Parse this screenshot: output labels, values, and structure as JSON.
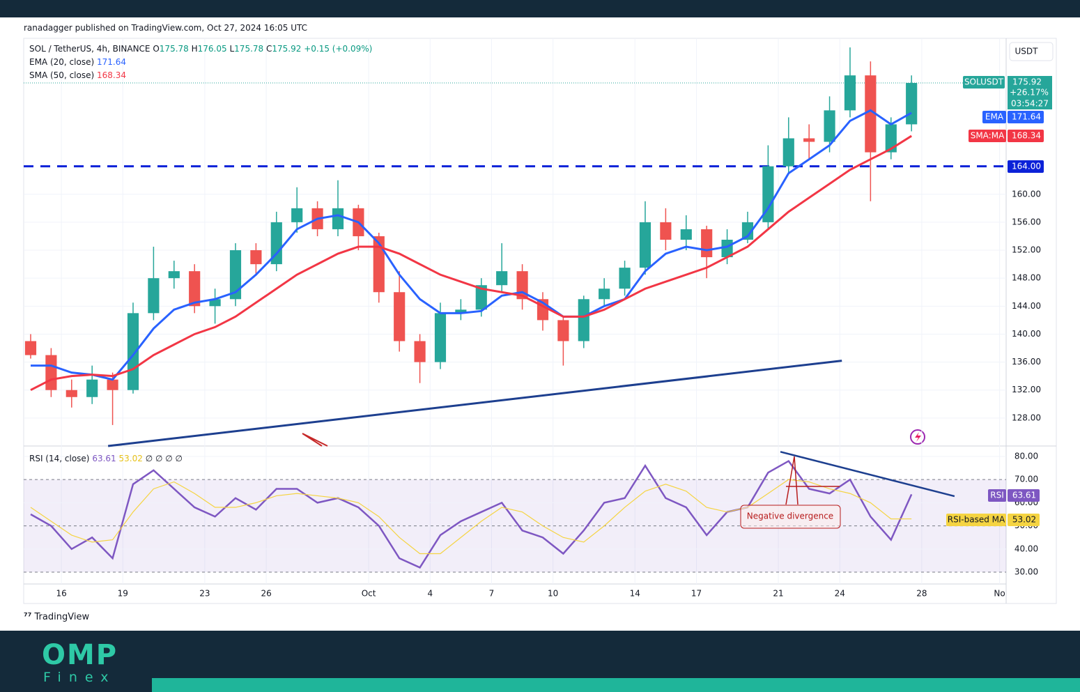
{
  "header": {
    "published": "ranadagger published on TradingView.com, Oct 27, 2024 16:05 UTC"
  },
  "chart_data": {
    "type": "candlestick",
    "symbol": "SOL / TetherUS, 4h, BINANCE",
    "ohlc": [
      {
        "label": "O",
        "value": 175.78
      },
      {
        "label": "H",
        "value": 176.05
      },
      {
        "label": "L",
        "value": 175.78
      }
    ],
    "close_label": "C",
    "change": "+0.15 (+0.09%)",
    "x": [
      14.5,
      15.5,
      16.5,
      17.5,
      18.5,
      19.5,
      20.5,
      21.5,
      22.5,
      23.5,
      24.5,
      25.5,
      26.5,
      27.5,
      28.5,
      29.5,
      30.5,
      31.5,
      32.5,
      33.5,
      34.5,
      35.5,
      36.5,
      37.5,
      38.5,
      39.5,
      40.5,
      41.5,
      42.5,
      43.5,
      44.5,
      45.5,
      46.5,
      47.5,
      48.5,
      49.5,
      50.5,
      51.5,
      52.5,
      53.5,
      54.5,
      55.5,
      56.5,
      57.5
    ],
    "xlim": [
      14.16,
      62.12
    ],
    "xticks": [
      16,
      19,
      23,
      26,
      {
        "value": 31,
        "label": "Oct"
      },
      {
        "value": 34,
        "label": "4"
      },
      {
        "value": 37,
        "label": "7"
      },
      {
        "value": 40,
        "label": "10"
      },
      {
        "value": 44,
        "label": "14"
      },
      {
        "value": 47,
        "label": "17"
      },
      {
        "value": 51,
        "label": "21"
      },
      {
        "value": 54,
        "label": "24"
      },
      {
        "value": 58,
        "label": "28"
      },
      {
        "value": 61.8,
        "label": "No"
      }
    ],
    "open": [
      139,
      137,
      132,
      131,
      133.5,
      132,
      143,
      148,
      149,
      144,
      145,
      152,
      150,
      156,
      158,
      155,
      158,
      154,
      146,
      139,
      136,
      143,
      143.5,
      147,
      149,
      145,
      142,
      139,
      145,
      146.5,
      149.5,
      156,
      153.5,
      155,
      151,
      153.5,
      156,
      164,
      168,
      167.5,
      172,
      177,
      166,
      170
    ],
    "high": [
      140,
      138,
      133.5,
      135.5,
      134.5,
      144.5,
      152.5,
      150.5,
      150,
      146.5,
      153,
      153,
      157.5,
      161,
      159,
      162,
      158.5,
      154.5,
      149,
      140,
      144.5,
      145,
      148,
      153,
      150,
      146,
      142.5,
      145.5,
      148,
      150.5,
      159,
      158,
      157,
      155.5,
      155,
      157.5,
      167,
      171,
      170,
      174,
      181,
      179,
      171,
      177
    ],
    "low": [
      136.5,
      131,
      129.5,
      130,
      127,
      131.5,
      142,
      146.5,
      143,
      141.5,
      144,
      148.5,
      149,
      154.5,
      154,
      154,
      152,
      144.5,
      137.5,
      133,
      135,
      142,
      142.5,
      146,
      143.5,
      140.5,
      135.5,
      138,
      144,
      145.5,
      148.5,
      152,
      152,
      148,
      150,
      153,
      155,
      163,
      165,
      166,
      171,
      159,
      165,
      169
    ],
    "close": [
      137,
      132,
      131,
      133.5,
      132,
      143,
      148,
      149,
      144,
      145,
      152,
      150,
      156,
      158,
      155,
      158,
      154,
      146,
      139,
      136,
      143,
      143.5,
      147,
      149,
      145,
      142,
      139,
      145,
      146.5,
      149.5,
      156,
      153.5,
      155,
      151,
      153.5,
      156,
      164,
      168,
      167.5,
      172,
      177,
      166,
      170,
      175.92
    ],
    "colors": {
      "up": "#26a69a",
      "down": "#ef5350"
    },
    "series": [
      {
        "name": "EMA (20, close)",
        "color": "#2962ff",
        "values": [
          135.5,
          135.5,
          134.5,
          134.2,
          133.5,
          137,
          140.8,
          143.5,
          144.5,
          145,
          146,
          148.5,
          151.5,
          155,
          156.5,
          157,
          156,
          153,
          148.5,
          145,
          143,
          143,
          143.3,
          145.5,
          146,
          144.5,
          142.5,
          142.5,
          144,
          145,
          149,
          151.5,
          152.5,
          152,
          152.5,
          154,
          158,
          163,
          165,
          167,
          170.5,
          172,
          170,
          171.64
        ]
      },
      {
        "name": "SMA (50, close)",
        "color": "#f23645",
        "values": [
          132,
          133.5,
          134,
          134.2,
          134,
          135,
          137,
          138.5,
          140,
          141,
          142.5,
          144.5,
          146.5,
          148.5,
          150,
          151.5,
          152.5,
          152.5,
          151.5,
          150,
          148.5,
          147.5,
          146.5,
          146,
          145.5,
          144,
          142.5,
          142.5,
          143.5,
          145,
          146.5,
          147.5,
          148.5,
          149.5,
          151,
          152.5,
          155,
          157.5,
          159.5,
          161.5,
          163.5,
          165,
          166.5,
          168.34
        ]
      }
    ],
    "ylim": [
      124,
      182.3
    ],
    "yticks": [
      {
        "value": 128,
        "label": "128.00"
      },
      {
        "value": 132,
        "label": "132.00"
      },
      {
        "value": 136,
        "label": "136.00"
      },
      {
        "value": 140,
        "label": "140.00"
      },
      {
        "value": 144,
        "label": "144.00"
      },
      {
        "value": 148,
        "label": "148.00"
      },
      {
        "value": 152,
        "label": "152.00"
      },
      {
        "value": 156,
        "label": "156.00"
      },
      {
        "value": 160,
        "label": "160.00"
      }
    ],
    "grid": true,
    "level": {
      "value": 164,
      "label": "164.00",
      "color": "#0c22d8"
    },
    "trendline": {
      "x": [
        18.28,
        54.1
      ],
      "y": [
        124.0,
        136.2
      ],
      "color": "#1d3f8f"
    },
    "currency": "USDT",
    "price_tag": {
      "symbol": "SOLUSDT",
      "change": "+26.17%",
      "countdown": "03:54:27"
    },
    "ema_tag": "EMA",
    "sma_tag": "SMA:MA",
    "rsi": {
      "title": "RSI (14, close)",
      "empty": "∅ ∅ ∅ ∅",
      "series": [
        {
          "name": "RSI",
          "color": "#7e57c2",
          "values": [
            55,
            50,
            40,
            45,
            36,
            68,
            74,
            66,
            58,
            54,
            62,
            57,
            66,
            66,
            60,
            62,
            58,
            50,
            36,
            32,
            46,
            52,
            56,
            60,
            48,
            45,
            38,
            48,
            60,
            62,
            76,
            62,
            58,
            46,
            56,
            58,
            73,
            78,
            66,
            64,
            70,
            54,
            44,
            63.61
          ]
        },
        {
          "name": "RSI-based MA",
          "color": "#f5d442",
          "values": [
            58,
            52,
            46,
            43,
            44,
            56,
            66,
            69,
            64,
            58,
            58,
            60,
            63,
            64,
            63,
            62,
            60,
            54,
            45,
            38,
            38,
            45,
            52,
            58,
            56,
            50,
            45,
            43,
            50,
            58,
            65,
            68,
            65,
            58,
            56,
            58,
            64,
            70,
            69,
            66,
            64,
            60,
            53,
            53.02
          ]
        }
      ],
      "ylim": [
        24.9,
        84.5
      ],
      "yticks": [
        {
          "value": 30,
          "label": "30.00"
        },
        {
          "value": 40,
          "label": "40.00"
        },
        {
          "value": 50,
          "label": "50.00"
        },
        {
          "value": 60,
          "label": "60.00"
        },
        {
          "value": 70,
          "label": "70.00"
        },
        {
          "value": 80,
          "label": "80.00"
        }
      ],
      "band": [
        30,
        70
      ],
      "trendline": {
        "x": [
          51.1,
          59.6
        ],
        "y": [
          82,
          62.8
        ],
        "color": "#1d3f8f"
      },
      "annotation": "Negative divergence"
    }
  },
  "footer": {
    "brand": "TradingView",
    "logo": "OMP",
    "logo_sub": "Finex"
  }
}
